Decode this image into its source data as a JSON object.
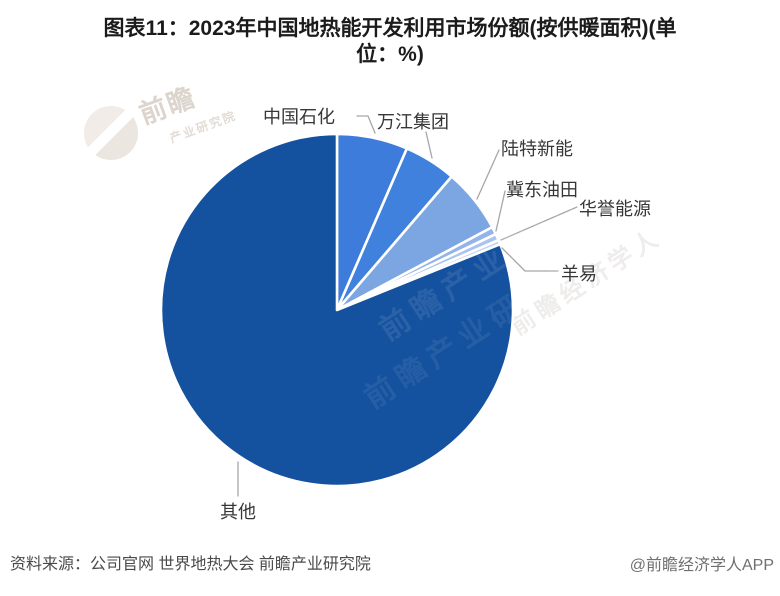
{
  "title": {
    "line1": "图表11：2023年中国地热能开发利用市场份额(按供暖面积)(单",
    "line2": "位：%)"
  },
  "chart_data": {
    "type": "pie",
    "title": "2023年中国地热能开发利用市场份额(按供暖面积)",
    "unit": "%",
    "legend_position": "none",
    "start_angle_deg": 0,
    "direction": "clockwise",
    "values_note": "percentages estimated from slice angles; no numeric labels shown in figure",
    "series": [
      {
        "name": "中国石化",
        "value": 6.5,
        "color": "#3d7cdb"
      },
      {
        "name": "万江集团",
        "value": 4.8,
        "color": "#4081de"
      },
      {
        "name": "陆特新能",
        "value": 5.9,
        "color": "#7ca6e2"
      },
      {
        "name": "冀东油田",
        "value": 0.7,
        "color": "#93b4e8"
      },
      {
        "name": "华誉能源",
        "value": 0.6,
        "color": "#a9c4ee"
      },
      {
        "name": "羊易",
        "value": 0.4,
        "color": "#bfd3f2"
      },
      {
        "name": "其他",
        "value": 81.1,
        "color": "#14519e"
      }
    ]
  },
  "footer": {
    "source": "资料来源：公司官网 世界地热大会 前瞻产业研究院",
    "credit": "@前瞻经济学人APP"
  },
  "watermark": {
    "logo_text": "前瞻",
    "logo_subtext": "产业研究院",
    "pie_text": "前瞻产业研究院",
    "side_text": "前瞻经济学人"
  }
}
